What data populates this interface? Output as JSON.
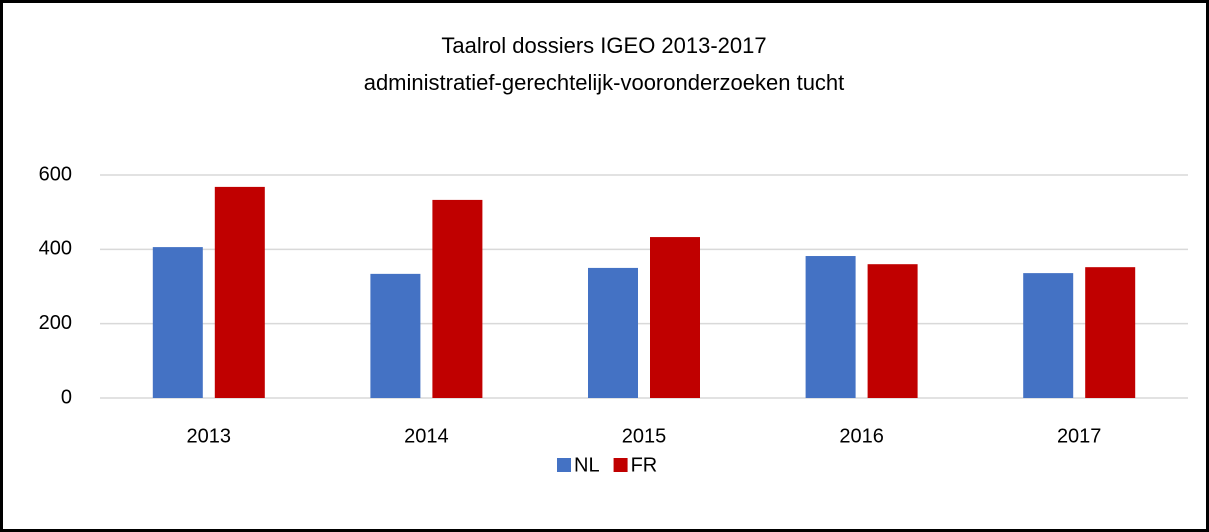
{
  "chart_data": {
    "type": "bar",
    "title": "Taalrol dossiers IGEO 2013-2017",
    "subtitle": "administratief-gerechtelijk-vooronderzoeken tucht",
    "categories": [
      "2013",
      "2014",
      "2015",
      "2016",
      "2017"
    ],
    "series": [
      {
        "name": "NL",
        "color": "#4472c4",
        "values": [
          406,
          334,
          350,
          382,
          336
        ]
      },
      {
        "name": "FR",
        "color": "#c00000",
        "values": [
          568,
          533,
          433,
          360,
          352
        ]
      }
    ],
    "ylim": [
      0,
      600
    ],
    "yticks": [
      0,
      200,
      400,
      600
    ],
    "grid": true,
    "legend": "bottom"
  }
}
